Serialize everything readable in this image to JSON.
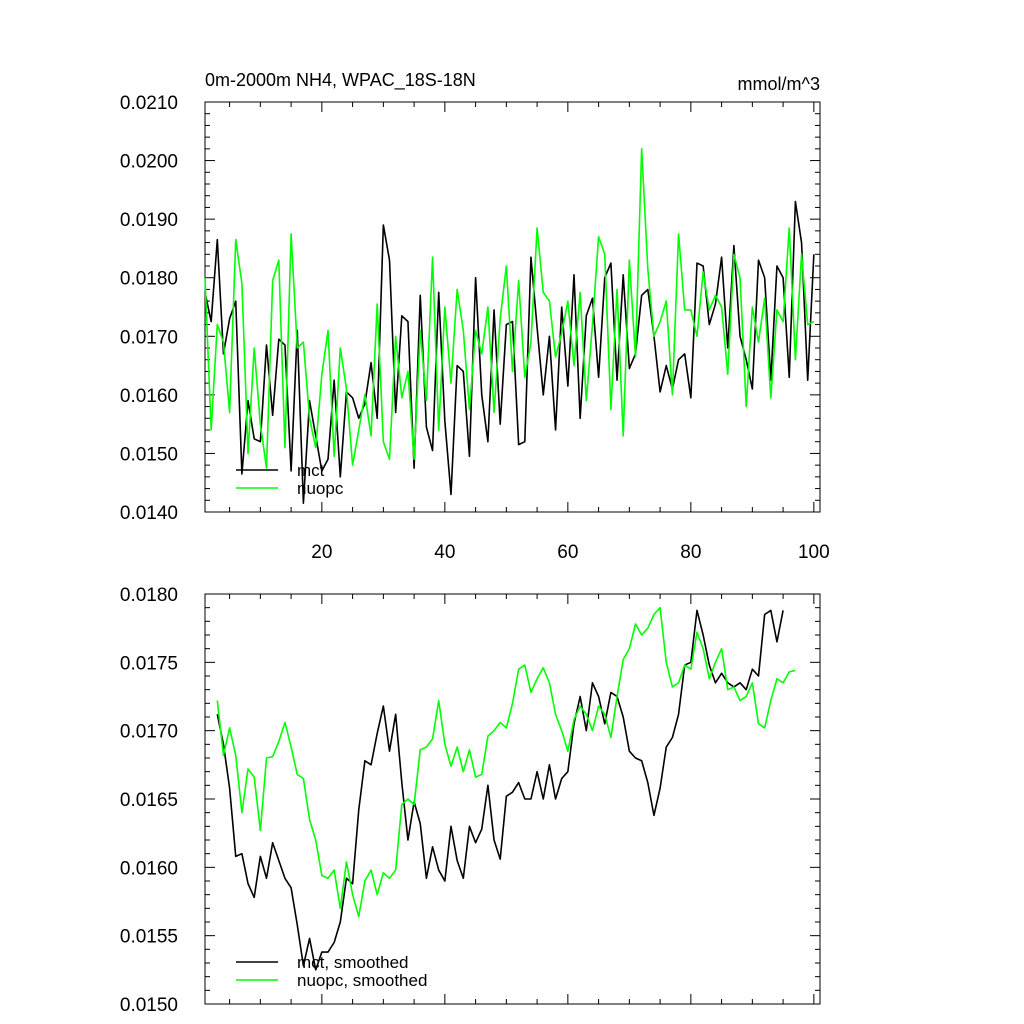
{
  "chart_data": [
    {
      "type": "line",
      "title": "0m-2000m NH4, WPAC_18S-18N",
      "units": "mmol/m^3",
      "xlabel": "",
      "ylabel": "",
      "xlim": [
        1,
        101
      ],
      "ylim": [
        0.014,
        0.021
      ],
      "x_tick_labels": [
        "20",
        "40",
        "60",
        "80",
        "100"
      ],
      "y_tick_labels": [
        "0.0140",
        "0.0150",
        "0.0160",
        "0.0170",
        "0.0180",
        "0.0190",
        "0.0200",
        "0.0210"
      ],
      "grid": false,
      "legend_position": "bottom-left",
      "x_start": 1,
      "series": [
        {
          "name": "mct",
          "color": "#000000",
          "values": [
            0.01775,
            0.01725,
            0.01865,
            0.0167,
            0.0173,
            0.0176,
            0.01465,
            0.0159,
            0.01525,
            0.0152,
            0.01685,
            0.01565,
            0.01695,
            0.01685,
            0.0147,
            0.0171,
            0.01415,
            0.0159,
            0.0153,
            0.0147,
            0.0149,
            0.01625,
            0.0146,
            0.01605,
            0.01595,
            0.0156,
            0.01585,
            0.01655,
            0.0156,
            0.0189,
            0.0183,
            0.0157,
            0.01735,
            0.01725,
            0.01475,
            0.0177,
            0.01545,
            0.01505,
            0.01775,
            0.01555,
            0.0143,
            0.0165,
            0.0164,
            0.01495,
            0.018,
            0.016,
            0.0152,
            0.01745,
            0.0155,
            0.0172,
            0.01725,
            0.01515,
            0.0152,
            0.01835,
            0.01715,
            0.016,
            0.017,
            0.0154,
            0.0175,
            0.01615,
            0.01805,
            0.0156,
            0.01735,
            0.01765,
            0.0163,
            0.018,
            0.01825,
            0.01625,
            0.01805,
            0.01645,
            0.0167,
            0.0177,
            0.0178,
            0.017,
            0.01605,
            0.0165,
            0.0161,
            0.0166,
            0.0167,
            0.01595,
            0.01825,
            0.0182,
            0.0172,
            0.01755,
            0.01835,
            0.0168,
            0.01855,
            0.017,
            0.0166,
            0.0161,
            0.0183,
            0.018,
            0.01625,
            0.0182,
            0.018,
            0.0163,
            0.0193,
            0.0186,
            0.01625,
            0.0184
          ]
        },
        {
          "name": "nuopc",
          "color": "#00ff00",
          "values": [
            0.018,
            0.0154,
            0.0172,
            0.0169,
            0.0157,
            0.01865,
            0.0179,
            0.015,
            0.0168,
            0.0155,
            0.01475,
            0.01795,
            0.0183,
            0.0151,
            0.01875,
            0.0168,
            0.0169,
            0.0156,
            0.0151,
            0.01635,
            0.0171,
            0.01495,
            0.0168,
            0.0161,
            0.0148,
            0.0154,
            0.016,
            0.0153,
            0.01755,
            0.0152,
            0.0149,
            0.017,
            0.01595,
            0.0164,
            0.0149,
            0.0171,
            0.0159,
            0.01835,
            0.0154,
            0.0175,
            0.0162,
            0.0178,
            0.0171,
            0.01575,
            0.0171,
            0.0167,
            0.0175,
            0.0157,
            0.0173,
            0.0182,
            0.0164,
            0.01795,
            0.0163,
            0.0169,
            0.01885,
            0.01775,
            0.0176,
            0.01665,
            0.01705,
            0.0176,
            0.0165,
            0.01775,
            0.0159,
            0.0172,
            0.0187,
            0.0184,
            0.01575,
            0.0178,
            0.0153,
            0.0183,
            0.01665,
            0.0202,
            0.01815,
            0.017,
            0.01725,
            0.0176,
            0.016,
            0.01875,
            0.01745,
            0.01745,
            0.017,
            0.0181,
            0.01745,
            0.0177,
            0.0175,
            0.01635,
            0.0184,
            0.018,
            0.0158,
            0.0175,
            0.0169,
            0.01765,
            0.01595,
            0.01745,
            0.01725,
            0.01885,
            0.0166,
            0.0184,
            0.0172,
            0.01725
          ]
        }
      ]
    },
    {
      "type": "line",
      "title": "",
      "xlabel": "",
      "ylabel": "",
      "xlim": [
        1,
        101
      ],
      "ylim": [
        0.015,
        0.018
      ],
      "x_tick_labels": [],
      "y_tick_labels": [
        "0.0150",
        "0.0155",
        "0.0160",
        "0.0165",
        "0.0170",
        "0.0175",
        "0.0180"
      ],
      "grid": false,
      "legend_position": "bottom-left",
      "x_start": 3,
      "series": [
        {
          "name": "mct, smoothed",
          "color": "#000000",
          "values": [
            0.01712,
            0.0169,
            0.01658,
            0.01608,
            0.0161,
            0.01588,
            0.01578,
            0.01608,
            0.01592,
            0.01618,
            0.01605,
            0.01592,
            0.01585,
            0.01558,
            0.01528,
            0.01548,
            0.01525,
            0.01538,
            0.01538,
            0.01545,
            0.0156,
            0.01592,
            0.01588,
            0.01642,
            0.01678,
            0.01675,
            0.01698,
            0.01718,
            0.01685,
            0.01712,
            0.01662,
            0.0162,
            0.01648,
            0.01632,
            0.01592,
            0.01615,
            0.01598,
            0.0159,
            0.0163,
            0.01605,
            0.01592,
            0.0163,
            0.01618,
            0.01628,
            0.0166,
            0.0162,
            0.01606,
            0.01652,
            0.01655,
            0.01662,
            0.0165,
            0.0165,
            0.0167,
            0.0165,
            0.01675,
            0.0165,
            0.01665,
            0.0167,
            0.01705,
            0.01725,
            0.017,
            0.01735,
            0.01725,
            0.01705,
            0.01728,
            0.01725,
            0.0171,
            0.01685,
            0.0168,
            0.01678,
            0.01662,
            0.01638,
            0.01658,
            0.01688,
            0.01695,
            0.01712,
            0.01748,
            0.0175,
            0.01788,
            0.0177,
            0.01748,
            0.01735,
            0.01742,
            0.01735,
            0.01732,
            0.01735,
            0.0173,
            0.01745,
            0.0174,
            0.01785,
            0.01788,
            0.01765,
            0.01788
          ]
        },
        {
          "name": "nuopc, smoothed",
          "color": "#00ff00",
          "values": [
            0.01722,
            0.01682,
            0.01702,
            0.01682,
            0.0164,
            0.01672,
            0.01666,
            0.01627,
            0.0168,
            0.01681,
            0.01692,
            0.01706,
            0.01688,
            0.01668,
            0.01665,
            0.01635,
            0.0162,
            0.01594,
            0.01592,
            0.01598,
            0.0157,
            0.01604,
            0.0158,
            0.01564,
            0.0159,
            0.01598,
            0.0158,
            0.01596,
            0.01592,
            0.01598,
            0.01646,
            0.0165,
            0.01646,
            0.01686,
            0.01688,
            0.01694,
            0.01722,
            0.0169,
            0.01674,
            0.01688,
            0.0167,
            0.01686,
            0.01666,
            0.01668,
            0.01696,
            0.017,
            0.01706,
            0.01702,
            0.0172,
            0.01745,
            0.01748,
            0.01728,
            0.01738,
            0.01746,
            0.01735,
            0.01712,
            0.017,
            0.01685,
            0.01708,
            0.01718,
            0.01712,
            0.017,
            0.01718,
            0.01712,
            0.01695,
            0.01725,
            0.01752,
            0.0176,
            0.01778,
            0.0177,
            0.01775,
            0.01785,
            0.0179,
            0.0175,
            0.01732,
            0.01735,
            0.01748,
            0.01745,
            0.01772,
            0.0176,
            0.01738,
            0.0175,
            0.0176,
            0.0173,
            0.01732,
            0.01722,
            0.01725,
            0.01735,
            0.01705,
            0.01702,
            0.01722,
            0.01738,
            0.01735,
            0.01743,
            0.01744
          ]
        }
      ]
    }
  ]
}
